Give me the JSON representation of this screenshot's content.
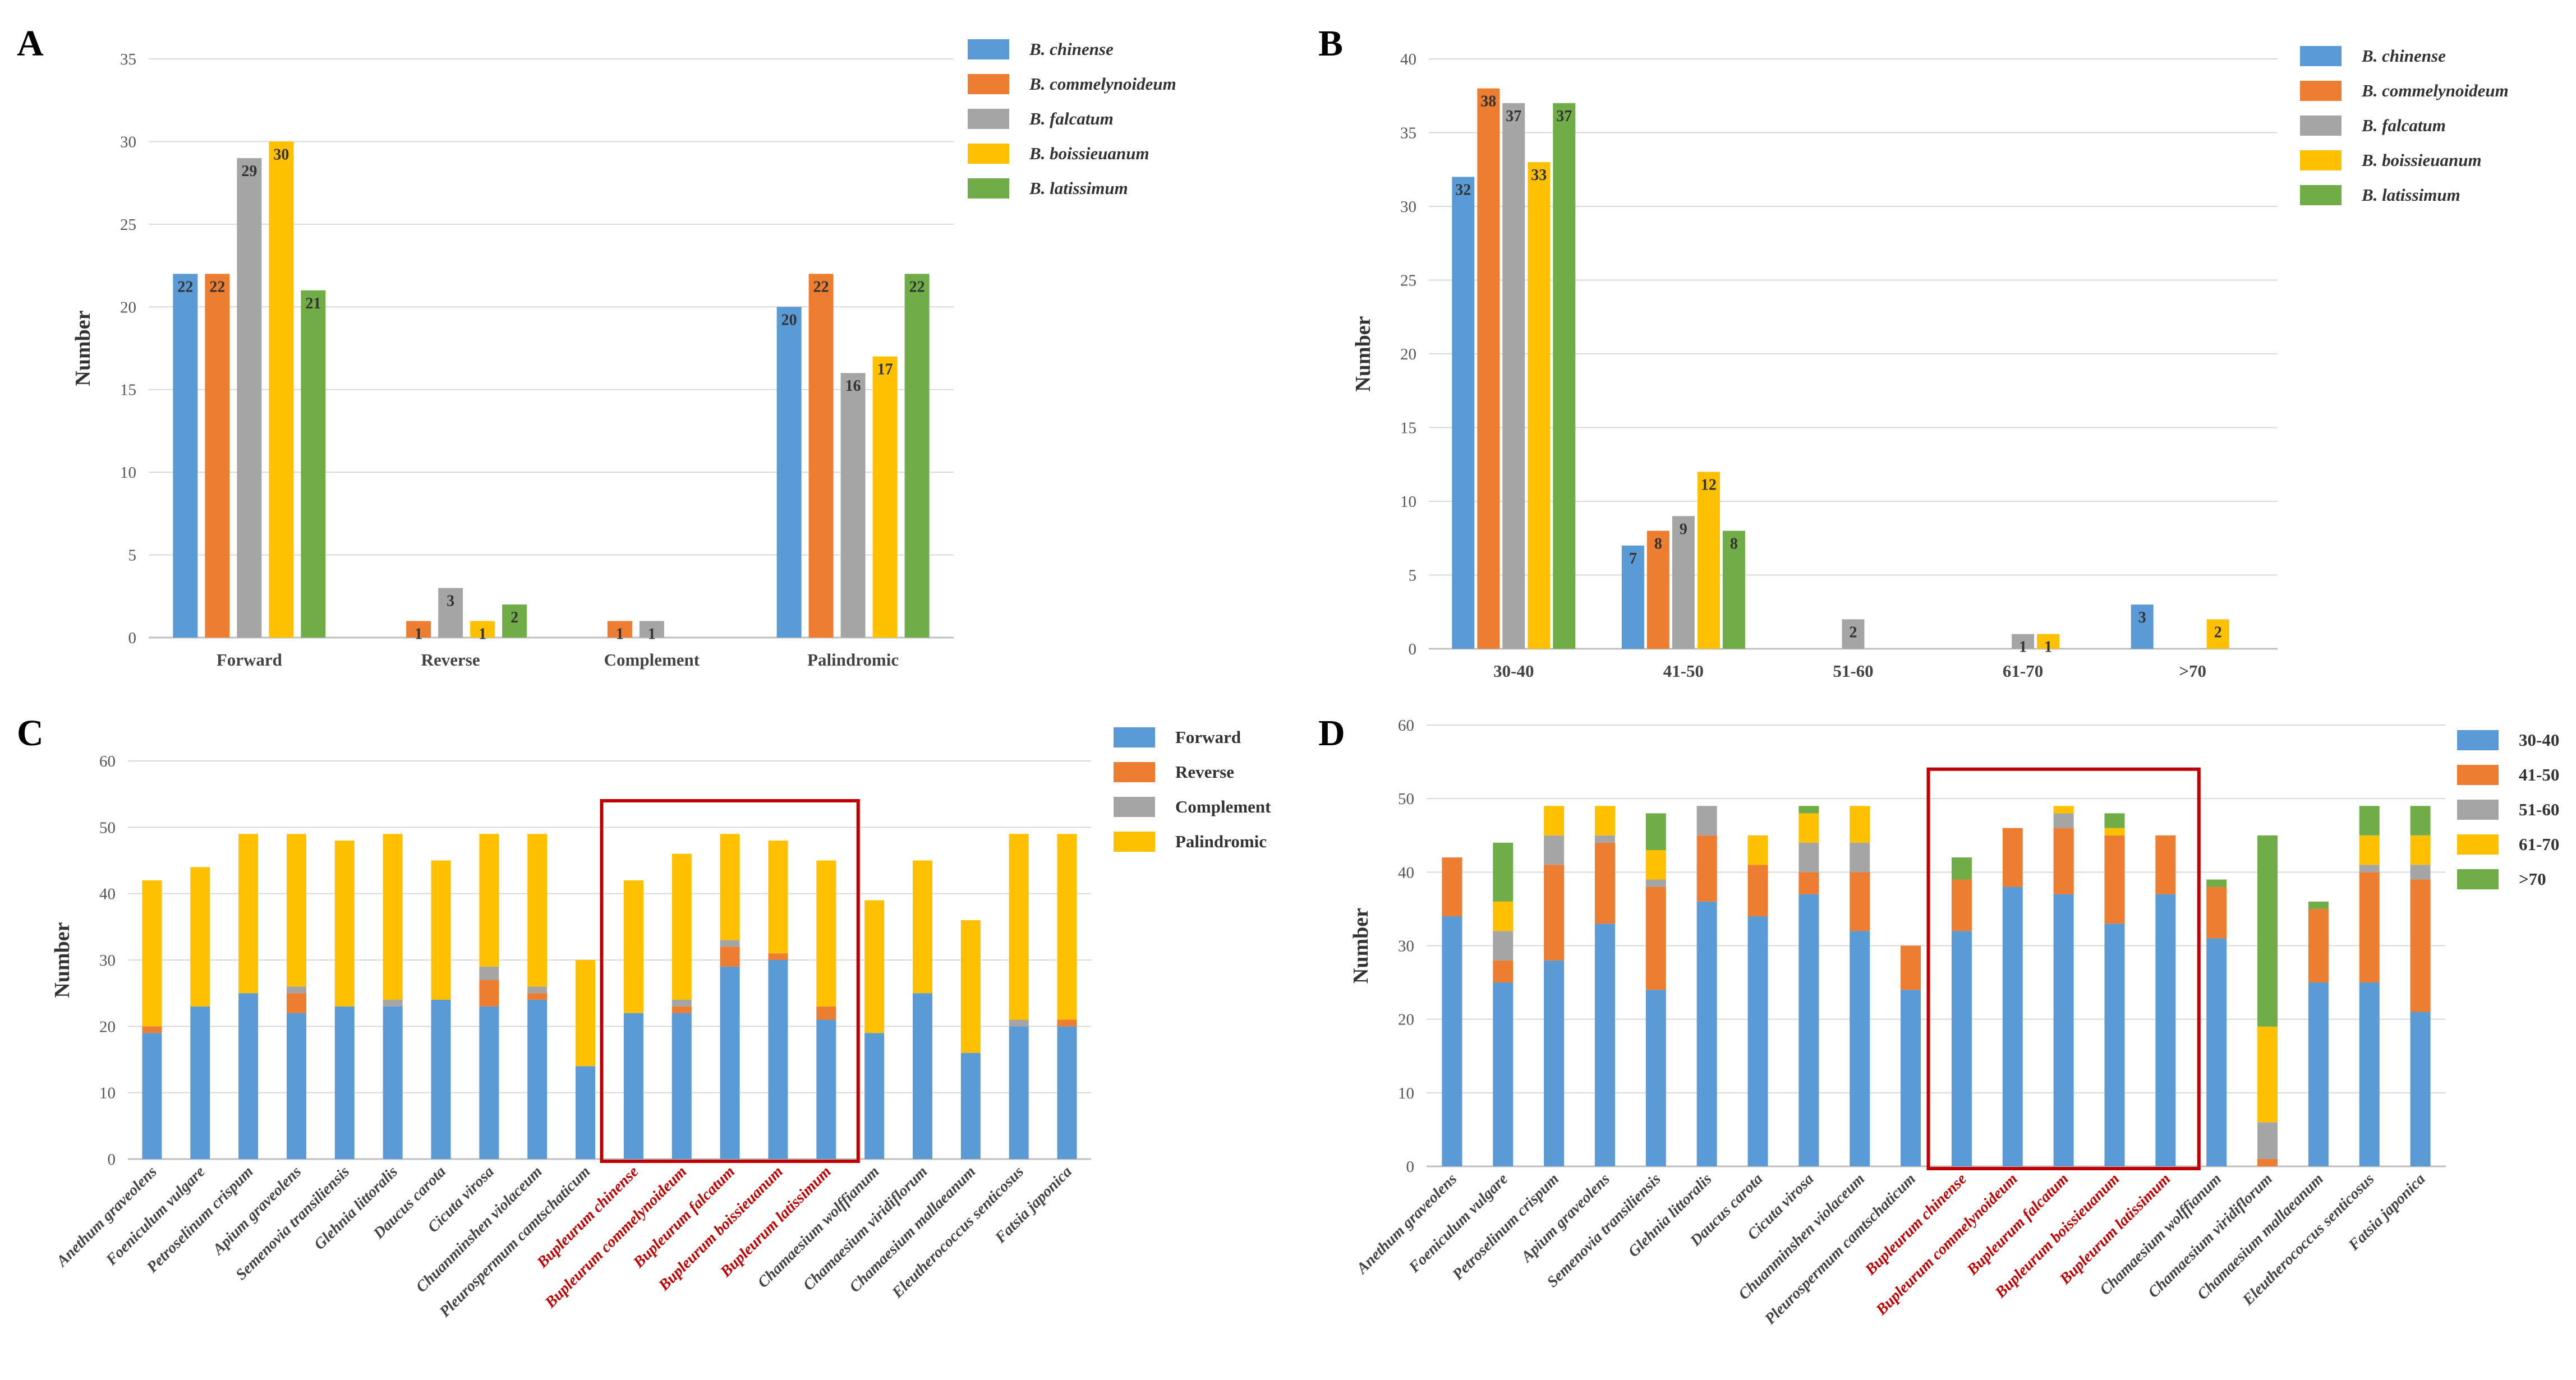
{
  "colors": {
    "blue": "#5b9bd5",
    "orange": "#ed7d31",
    "gray": "#a5a5a5",
    "yellow": "#ffc000",
    "green": "#70ad47",
    "highlight": "#c00000"
  },
  "chart_data": [
    {
      "id": "A",
      "type": "bar",
      "panel_label": "A",
      "ylabel": "Number",
      "ylim": [
        0,
        35
      ],
      "yticks": [
        0,
        5,
        10,
        15,
        20,
        25,
        30,
        35
      ],
      "categories": [
        "Forward",
        "Reverse",
        "Complement",
        "Palindromic"
      ],
      "series": [
        {
          "name": "B. chinense",
          "color": "blue",
          "values": [
            22,
            0,
            0,
            20
          ],
          "labels": [
            "22",
            "",
            "",
            "20"
          ]
        },
        {
          "name": "B. commelynoideum",
          "color": "orange",
          "values": [
            22,
            1,
            1,
            22
          ],
          "labels": [
            "22",
            "1",
            "1",
            "22"
          ]
        },
        {
          "name": "B. falcatum",
          "color": "gray",
          "values": [
            29,
            3,
            1,
            16
          ],
          "labels": [
            "29",
            "3",
            "1",
            "16"
          ]
        },
        {
          "name": "B. boissieuanum",
          "color": "yellow",
          "values": [
            30,
            1,
            0,
            17
          ],
          "labels": [
            "30",
            "1",
            "",
            "17"
          ]
        },
        {
          "name": "B. latissimum",
          "color": "green",
          "values": [
            21,
            2,
            0,
            22
          ],
          "labels": [
            "21",
            "2",
            "",
            "22"
          ]
        }
      ]
    },
    {
      "id": "B",
      "type": "bar",
      "panel_label": "B",
      "ylabel": "Number",
      "ylim": [
        0,
        40
      ],
      "yticks": [
        0,
        5,
        10,
        15,
        20,
        25,
        30,
        35,
        40
      ],
      "categories": [
        "30-40",
        "41-50",
        "51-60",
        "61-70",
        ">70"
      ],
      "series": [
        {
          "name": "B. chinense",
          "color": "blue",
          "values": [
            32,
            7,
            0,
            0,
            3
          ],
          "labels": [
            "32",
            "7",
            "",
            "",
            "3"
          ]
        },
        {
          "name": "B. commelynoideum",
          "color": "orange",
          "values": [
            38,
            8,
            0,
            0,
            0
          ],
          "labels": [
            "38",
            "8",
            "",
            "",
            ""
          ]
        },
        {
          "name": "B. falcatum",
          "color": "gray",
          "values": [
            37,
            9,
            2,
            1,
            0
          ],
          "labels": [
            "37",
            "9",
            "2",
            "1",
            ""
          ]
        },
        {
          "name": "B. boissieuanum",
          "color": "yellow",
          "values": [
            33,
            12,
            0,
            1,
            2
          ],
          "labels": [
            "33",
            "12",
            "",
            "1",
            "2"
          ]
        },
        {
          "name": "B. latissimum",
          "color": "green",
          "values": [
            37,
            8,
            0,
            0,
            0
          ],
          "labels": [
            "37",
            "8",
            "",
            "",
            ""
          ]
        }
      ]
    },
    {
      "id": "C",
      "type": "bar",
      "stacked": true,
      "panel_label": "C",
      "ylabel": "Number",
      "ylim": [
        0,
        60
      ],
      "yticks": [
        0,
        10,
        20,
        30,
        40,
        50,
        60
      ],
      "categories": [
        "Anethum graveolens",
        "Foeniculum vulgare",
        "Petroselinum crispum",
        "Apium graveolens",
        "Semenovia transiliensis",
        "Glehnia littoralis",
        "Daucus carota",
        "Cicuta virosa",
        "Chuanminshen violaceum",
        "Pleurospermum camtschaticum",
        "Bupleurum chinense",
        "Bupleurum commelynoideum",
        "Bupleurum falcatum",
        "Bupleurum boissieuanum",
        "Bupleurum latissimum",
        "Chamaesium wolffianum",
        "Chamaesium viridiflorum",
        "Chamaesium mallaeanum",
        "Eleutherococcus senticosus",
        "Fatsia japonica"
      ],
      "highlight": [
        10,
        14
      ],
      "series": [
        {
          "name": "Forward",
          "color": "blue",
          "values": [
            19,
            23,
            25,
            22,
            23,
            23,
            24,
            23,
            24,
            14,
            22,
            22,
            29,
            30,
            21,
            19,
            25,
            16,
            20,
            20
          ]
        },
        {
          "name": "Reverse",
          "color": "orange",
          "values": [
            1,
            0,
            0,
            3,
            0,
            0,
            0,
            4,
            1,
            0,
            0,
            1,
            3,
            1,
            2,
            0,
            0,
            0,
            0,
            1
          ]
        },
        {
          "name": "Complement",
          "color": "gray",
          "values": [
            0,
            0,
            0,
            1,
            0,
            1,
            0,
            2,
            1,
            0,
            0,
            1,
            1,
            0,
            0,
            0,
            0,
            0,
            1,
            0
          ]
        },
        {
          "name": "Palindromic",
          "color": "yellow",
          "values": [
            22,
            21,
            24,
            23,
            25,
            25,
            21,
            20,
            23,
            16,
            20,
            22,
            16,
            17,
            22,
            20,
            20,
            20,
            28,
            28
          ]
        }
      ]
    },
    {
      "id": "D",
      "type": "bar",
      "stacked": true,
      "panel_label": "D",
      "ylabel": "Number",
      "ylim": [
        0,
        60
      ],
      "yticks": [
        0,
        10,
        20,
        30,
        40,
        50,
        60
      ],
      "categories": [
        "Anethum graveolens",
        "Foeniculum vulgare",
        "Petroselinum crispum",
        "Apium graveolens",
        "Semenovia transiliensis",
        "Glehnia littoralis",
        "Daucus carota",
        "Cicuta virosa",
        "Chuanminshen violaceum",
        "Pleurospermum camtschaticum",
        "Bupleurum chinense",
        "Bupleurum commelynoideum",
        "Bupleurum falcatum",
        "Bupleurum boissieuanum",
        "Bupleurum latissimum",
        "Chamaesium wolffianum",
        "Chamaesium viridiflorum",
        "Chamaesium mallaeanum",
        "Eleutherococcus senticosus",
        "Fatsia japonica"
      ],
      "highlight": [
        10,
        14
      ],
      "series": [
        {
          "name": "30-40",
          "color": "blue",
          "values": [
            34,
            25,
            28,
            33,
            24,
            36,
            34,
            37,
            32,
            24,
            32,
            38,
            37,
            33,
            37,
            31,
            0,
            25,
            25,
            21
          ]
        },
        {
          "name": "41-50",
          "color": "orange",
          "values": [
            8,
            3,
            13,
            11,
            14,
            9,
            7,
            3,
            8,
            6,
            7,
            8,
            9,
            12,
            8,
            7,
            1,
            10,
            15,
            18
          ]
        },
        {
          "name": "51-60",
          "color": "gray",
          "values": [
            0,
            4,
            4,
            1,
            1,
            4,
            0,
            4,
            4,
            0,
            0,
            0,
            2,
            0,
            0,
            0,
            5,
            0,
            1,
            2
          ]
        },
        {
          "name": "61-70",
          "color": "yellow",
          "values": [
            0,
            4,
            4,
            4,
            4,
            0,
            4,
            4,
            5,
            0,
            0,
            0,
            1,
            1,
            0,
            0,
            13,
            0,
            4,
            4
          ]
        },
        {
          "name": ">70",
          "color": "green",
          "values": [
            0,
            8,
            0,
            0,
            5,
            0,
            0,
            1,
            0,
            0,
            3,
            0,
            0,
            2,
            0,
            1,
            26,
            1,
            4,
            4
          ]
        }
      ]
    }
  ]
}
